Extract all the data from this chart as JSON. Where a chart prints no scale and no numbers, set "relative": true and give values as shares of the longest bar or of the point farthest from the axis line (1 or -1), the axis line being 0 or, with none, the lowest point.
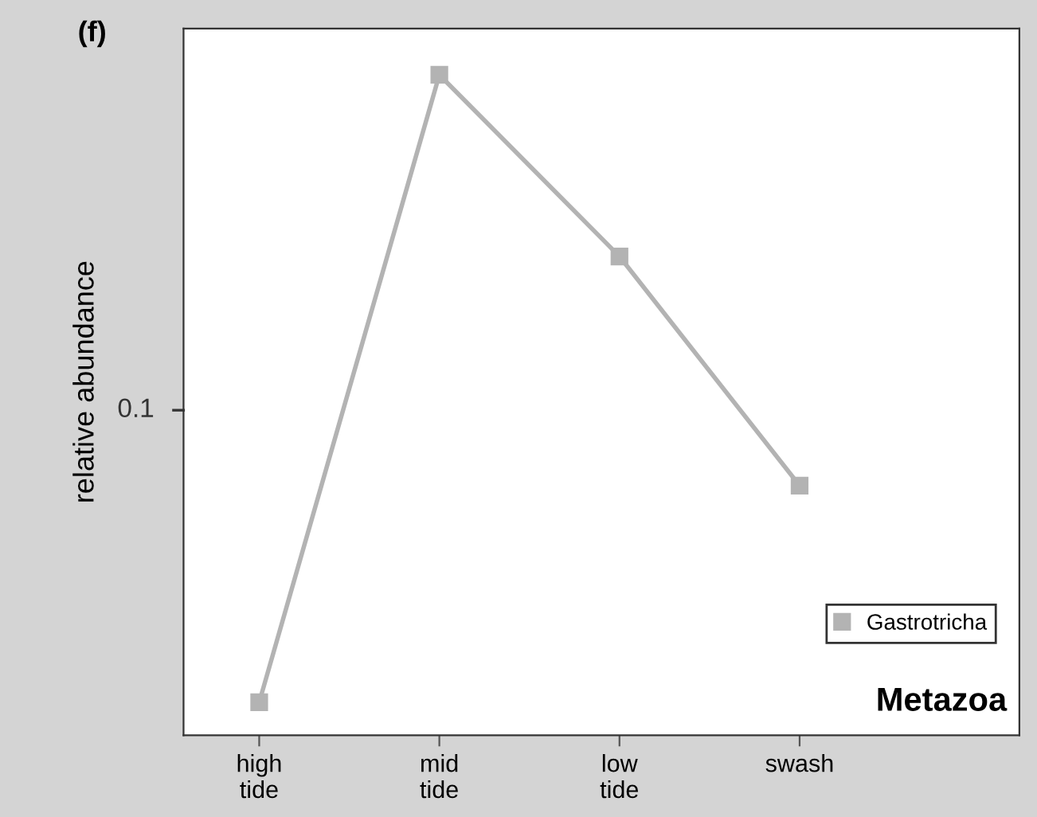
{
  "chart_data": {
    "type": "line",
    "title": "Metazoa",
    "ylabel": "relative abundance",
    "relative": true,
    "categories": [
      "high\ntide",
      "mid\ntide",
      "low\ntide",
      "swash"
    ],
    "series": [
      {
        "name": "Gastrotricha",
        "color": "#b3b3b3",
        "values": [
          0.05,
          1,
          0.725,
          0.378
        ]
      }
    ],
    "annotations": [
      "(f)",
      "0.1"
    ],
    "marker": "square",
    "line_style": "solid",
    "legend": "bottom right",
    "grid": false
  }
}
